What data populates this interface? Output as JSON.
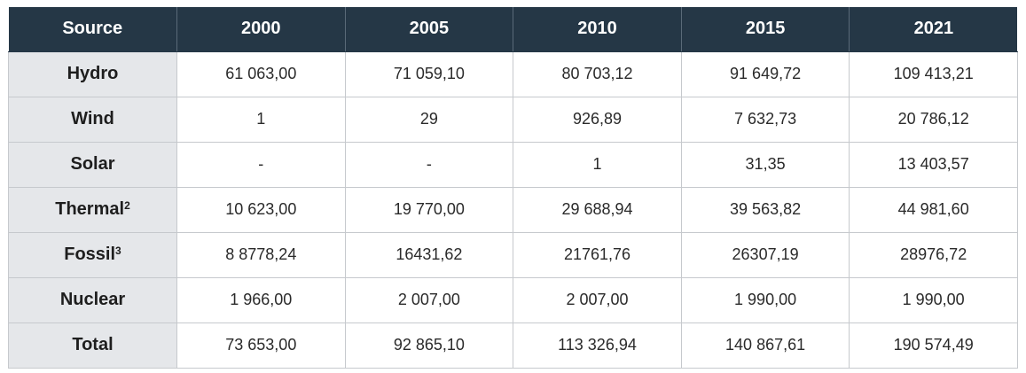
{
  "chart_data": {
    "type": "table",
    "header": [
      "Source",
      "2000",
      "2005",
      "2010",
      "2015",
      "2021"
    ],
    "rows": [
      {
        "source": "Hydro",
        "sup": "",
        "values": [
          "61 063,00",
          "71 059,10",
          "80 703,12",
          "91 649,72",
          "109 413,21"
        ]
      },
      {
        "source": "Wind",
        "sup": "",
        "values": [
          "1",
          "29",
          "926,89",
          "7 632,73",
          "20 786,12"
        ]
      },
      {
        "source": "Solar",
        "sup": "",
        "values": [
          "-",
          "-",
          "1",
          "31,35",
          "13 403,57"
        ]
      },
      {
        "source": "Thermal",
        "sup": "2",
        "values": [
          "10 623,00",
          "19 770,00",
          "29 688,94",
          "39 563,82",
          "44 981,60"
        ]
      },
      {
        "source": "Fossil",
        "sup": "3",
        "values": [
          "8 8778,24",
          "16431,62",
          "21761,76",
          "26307,19",
          "28976,72"
        ]
      },
      {
        "source": "Nuclear",
        "sup": "",
        "values": [
          "1 966,00",
          "2 007,00",
          "2 007,00",
          "1 990,00",
          "1 990,00"
        ]
      },
      {
        "source": "Total",
        "sup": "",
        "values": [
          "73 653,00",
          "92 865,10",
          "113 326,94",
          "140 867,61",
          "190 574,49"
        ]
      }
    ]
  },
  "colors": {
    "header_bg": "#253746",
    "header_text": "#ffffff",
    "source_col_bg": "#e5e7ea",
    "border": "#c6c9cd"
  }
}
